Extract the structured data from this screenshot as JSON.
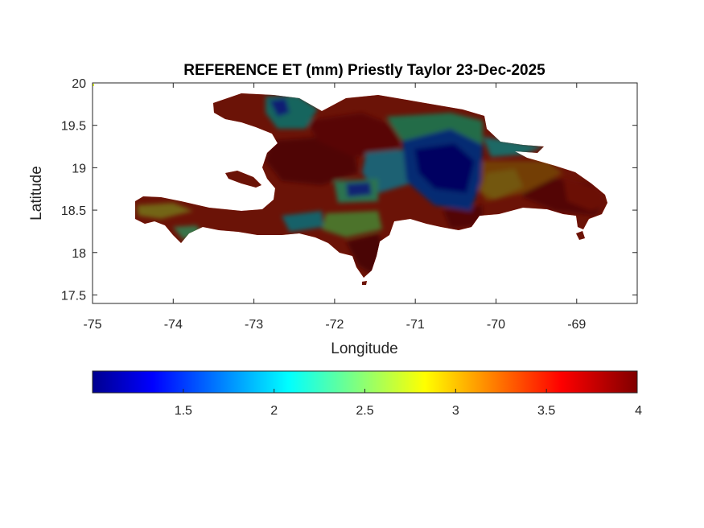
{
  "title": "REFERENCE ET (mm) Priestly Taylor 23-Dec-2025",
  "xlabel": "Longitude",
  "ylabel": "Latitude",
  "xticks": [
    "-75",
    "-74",
    "-73",
    "-72",
    "-71",
    "-70",
    "-69"
  ],
  "yticks": [
    "20",
    "19.5",
    "19",
    "18.5",
    "18",
    "17.5"
  ],
  "colorbar_ticks": [
    "1.5",
    "2",
    "2.5",
    "3",
    "3.5",
    "4"
  ],
  "chart_data": {
    "type": "heatmap",
    "title": "REFERENCE ET (mm) Priestly Taylor 23-Dec-2025",
    "xlabel": "Longitude",
    "ylabel": "Latitude",
    "xlim": [
      -75,
      -68.25
    ],
    "ylim": [
      17.4,
      20.0
    ],
    "xticks": [
      -75,
      -74,
      -73,
      -72,
      -71,
      -70,
      -69
    ],
    "yticks": [
      17.5,
      18,
      18.5,
      19,
      19.5,
      20
    ],
    "clim": [
      1.0,
      4.0
    ],
    "colorbar_ticks": [
      1.5,
      2,
      2.5,
      3,
      3.5,
      4
    ],
    "colormap": "jet",
    "grid": false,
    "colorbar_location": "bottom",
    "colormap_colors": [
      "#00008f",
      "#0000ff",
      "#00ffff",
      "#ffff00",
      "#ff0000",
      "#800000"
    ]
  }
}
